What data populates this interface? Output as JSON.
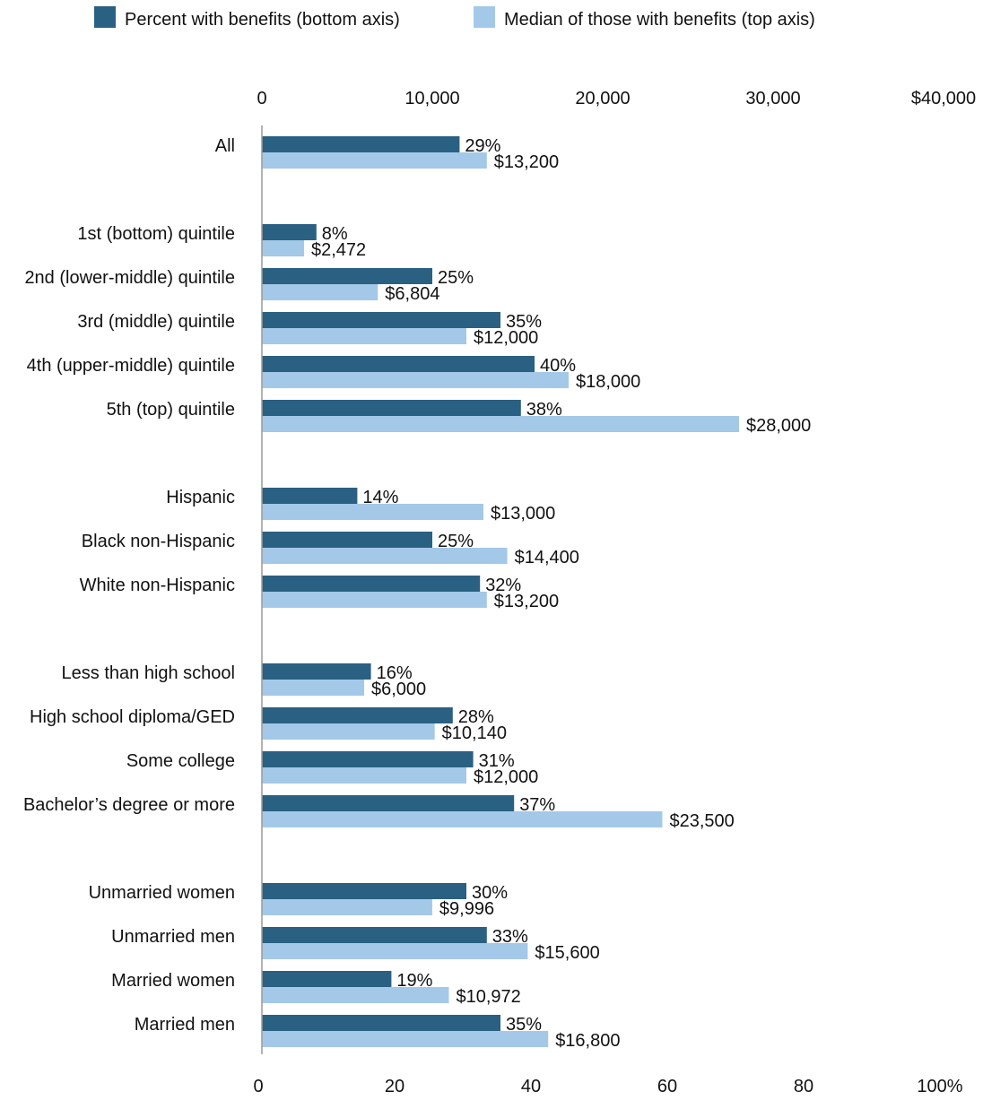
{
  "legend": {
    "items": [
      {
        "label": "Percent with benefits (bottom axis)",
        "color": "#2a6082"
      },
      {
        "label": "Median of those with benefits (top axis)",
        "color": "#a4c8e8"
      }
    ],
    "placement": "top-center"
  },
  "chart_data": {
    "type": "bar",
    "orientation": "horizontal",
    "categories": [
      "All",
      "1st (bottom) quintile",
      "2nd (lower-middle) quintile",
      "3rd (middle) quintile",
      "4th (upper-middle) quintile",
      "5th (top) quintile",
      "Hispanic",
      "Black non-Hispanic",
      "White non-Hispanic",
      "Less than high school",
      "High school diploma/GED",
      "Some college",
      "Bachelor’s degree or more",
      "Unmarried women",
      "Unmarried men",
      "Married women",
      "Married men"
    ],
    "groups": [
      [
        0
      ],
      [
        1,
        2,
        3,
        4,
        5
      ],
      [
        6,
        7,
        8
      ],
      [
        9,
        10,
        11,
        12
      ],
      [
        13,
        14,
        15,
        16
      ]
    ],
    "series": [
      {
        "name": "Percent with benefits (bottom axis)",
        "axis": "bottom",
        "color": "#2a6082",
        "values": [
          29,
          8,
          25,
          35,
          40,
          38,
          14,
          25,
          32,
          16,
          28,
          31,
          37,
          30,
          33,
          19,
          35
        ],
        "labels": [
          "29%",
          "8%",
          "25%",
          "35%",
          "40%",
          "38%",
          "14%",
          "25%",
          "32%",
          "16%",
          "28%",
          "31%",
          "37%",
          "30%",
          "33%",
          "19%",
          "35%"
        ]
      },
      {
        "name": "Median of those with benefits (top axis)",
        "axis": "top",
        "color": "#a4c8e8",
        "values": [
          13200,
          2472,
          6804,
          12000,
          18000,
          28000,
          13000,
          14400,
          13200,
          6000,
          10140,
          12000,
          23500,
          9996,
          15600,
          10972,
          16800
        ],
        "labels": [
          "$13,200",
          "$2,472",
          "$6,804",
          "$12,000",
          "$18,000",
          "$28,000",
          "$13,000",
          "$14,400",
          "$13,200",
          "$6,000",
          "$10,140",
          "$12,000",
          "$23,500",
          "$9,996",
          "$15,600",
          "$10,972",
          "$16,800"
        ]
      }
    ],
    "top_axis": {
      "range": [
        0,
        40000
      ],
      "ticks": [
        0,
        10000,
        20000,
        30000,
        40000
      ],
      "tick_labels": [
        "0",
        "10,000",
        "20,000",
        "30,000",
        "$40,000"
      ]
    },
    "bottom_axis": {
      "range": [
        0,
        100
      ],
      "ticks": [
        0,
        20,
        40,
        60,
        80,
        100
      ],
      "tick_labels": [
        "0",
        "20",
        "40",
        "60",
        "80",
        "100%"
      ]
    },
    "grid": false
  }
}
